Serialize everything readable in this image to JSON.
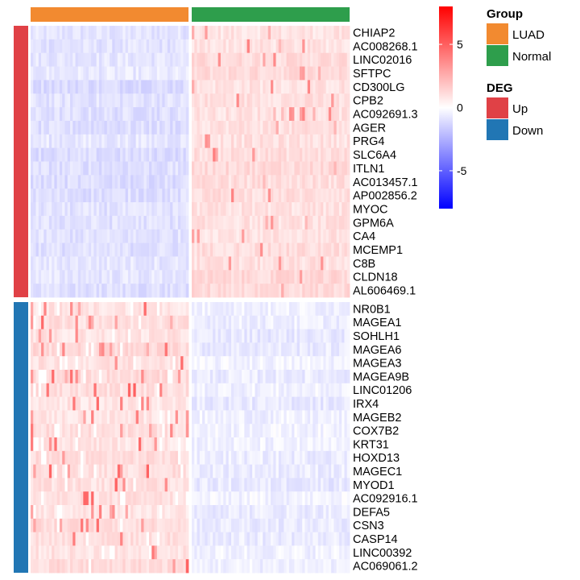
{
  "chart_data": {
    "type": "heatmap",
    "column_annotation": {
      "title": "Group",
      "groups": [
        {
          "label": "LUAD",
          "color": "#F28A30",
          "n_samples": 60
        },
        {
          "label": "Normal",
          "color": "#2E9E4C",
          "n_samples": 60
        }
      ]
    },
    "row_annotation": {
      "title": "DEG",
      "groups": [
        {
          "label": "Up",
          "color": "#E04146"
        },
        {
          "label": "Down",
          "color": "#2176B4"
        }
      ]
    },
    "row_blocks": [
      {
        "deg": "Up",
        "genes": [
          "CHIAP2",
          "AC008268.1",
          "LINC02016",
          "SFTPC",
          "CD300LG",
          "CPB2",
          "AC092691.3",
          "AGER",
          "PRG4",
          "SLC6A4",
          "ITLN1",
          "AC013457.1",
          "AP002856.2",
          "MYOC",
          "GPM6A",
          "CA4",
          "MCEMP1",
          "C8B",
          "CLDN18",
          "AL606469.1"
        ],
        "mean_value": {
          "LUAD": -0.9,
          "Normal": 1.0
        }
      },
      {
        "deg": "Down",
        "genes": [
          "NR0B1",
          "MAGEA1",
          "SOHLH1",
          "MAGEA6",
          "MAGEA3",
          "MAGEA9B",
          "LINC01206",
          "IRX4",
          "MAGEB2",
          "COX7B2",
          "KRT31",
          "HOXD13",
          "MAGEC1",
          "MYOD1",
          "AC092916.1",
          "DEFA5",
          "CSN3",
          "CASP14",
          "LINC00392",
          "AC069061.2"
        ],
        "mean_value": {
          "LUAD": 1.0,
          "Normal": -0.5
        }
      }
    ],
    "color_scale": {
      "low_color": "#0000FF",
      "mid_color": "#FFFFFF",
      "high_color": "#FF0000",
      "range": [
        -8,
        8
      ],
      "ticks": [
        5,
        0,
        -5
      ],
      "tick_labels": [
        "5",
        "0",
        "-5"
      ]
    }
  }
}
